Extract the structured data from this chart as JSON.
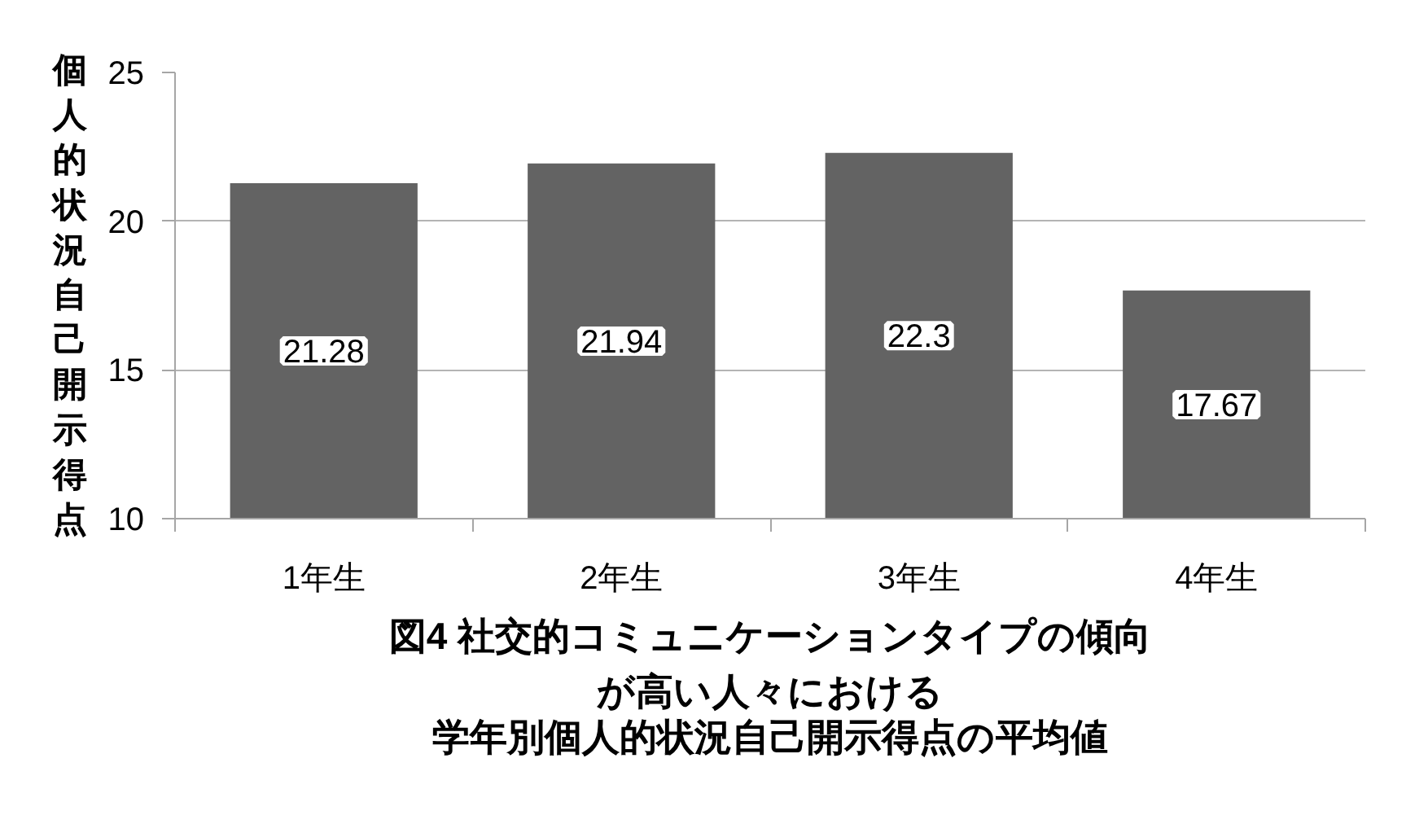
{
  "chart_data": {
    "type": "bar",
    "title": "図4 社交的コミュニケーションタイプの傾向が高い人々における学年別個人的状況自己開示得点の平均値",
    "ylabel": "個人的状況自己開示得点",
    "categories": [
      "1年生",
      "2年生",
      "3年生",
      "4年生"
    ],
    "values": [
      21.28,
      21.94,
      22.3,
      17.67
    ],
    "color": "#636363",
    "ylim": [
      10,
      25
    ],
    "yticks": [
      10,
      15,
      20,
      25
    ],
    "grid": "y",
    "data_labels": true
  }
}
